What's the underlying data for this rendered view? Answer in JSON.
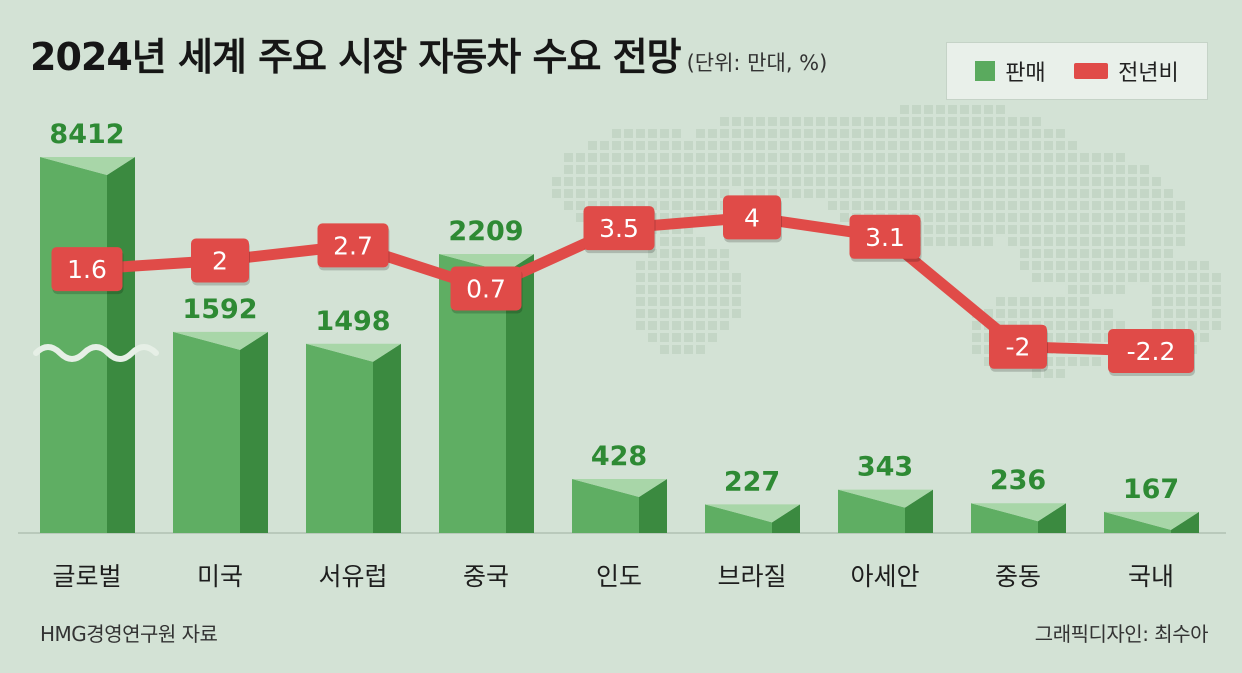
{
  "title": "2024년 세계 주요 시장 자동차 수요 전망",
  "unit": "(단위: 만대, %)",
  "legend": {
    "bar_label": "판매",
    "line_label": "전년비"
  },
  "source": "HMG경영연구원 자료",
  "credit": "그래픽디자인: 최수아",
  "colors": {
    "background": "#d3e2d5",
    "bar_front": "#5fae63",
    "bar_side": "#3b8a40",
    "bar_top": "#a8d6a8",
    "bar_value_text": "#2e8a34",
    "line": "#e04b48",
    "line_label_text": "#ffffff"
  },
  "chart_data": {
    "type": "bar",
    "categories": [
      "글로벌",
      "미국",
      "서유럽",
      "중국",
      "인도",
      "브라질",
      "아세안",
      "중동",
      "국내"
    ],
    "series": [
      {
        "name": "판매",
        "type": "bar",
        "values": [
          8412,
          1592,
          1498,
          2209,
          428,
          227,
          343,
          236,
          167
        ],
        "labels": [
          "8412",
          "1592",
          "1498",
          "2209",
          "428",
          "227",
          "343",
          "236",
          "167"
        ]
      },
      {
        "name": "전년비",
        "type": "line",
        "values": [
          1.6,
          2,
          2.7,
          0.7,
          3.5,
          4,
          3.1,
          -2,
          -2.2
        ],
        "labels": [
          "1.6",
          "2",
          "2.7",
          "0.7",
          "3.5",
          "4",
          "3.1",
          "-2",
          "-2.2"
        ]
      }
    ],
    "axis_break": "글로벌"
  }
}
